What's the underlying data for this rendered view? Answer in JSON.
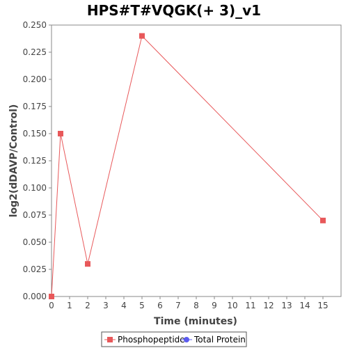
{
  "chart_data": {
    "type": "line",
    "title": "HPS#T#VQGK(+ 3)_v1",
    "xlabel": "Time (minutes)",
    "ylabel": "log2(dDAVP/Control)",
    "xlim": [
      0,
      16
    ],
    "ylim": [
      0,
      0.25
    ],
    "x_ticks": [
      "0",
      "1",
      "2",
      "3",
      "4",
      "5",
      "6",
      "7",
      "8",
      "9",
      "10",
      "11",
      "12",
      "13",
      "14",
      "15"
    ],
    "y_ticks": [
      "0.000",
      "0.025",
      "0.050",
      "0.075",
      "0.100",
      "0.125",
      "0.150",
      "0.175",
      "0.200",
      "0.225",
      "0.250"
    ],
    "grid": false,
    "legend_position": "bottom",
    "series": [
      {
        "name": "Phosphopeptide",
        "color": "#e8585a",
        "marker": "square",
        "x": [
          0,
          0.5,
          2,
          5,
          15
        ],
        "y": [
          0,
          0.15,
          0.03,
          0.24,
          0.07
        ]
      },
      {
        "name": "Total Protein",
        "color": "#5b5bf0",
        "marker": "circle",
        "x": [],
        "y": []
      }
    ]
  }
}
